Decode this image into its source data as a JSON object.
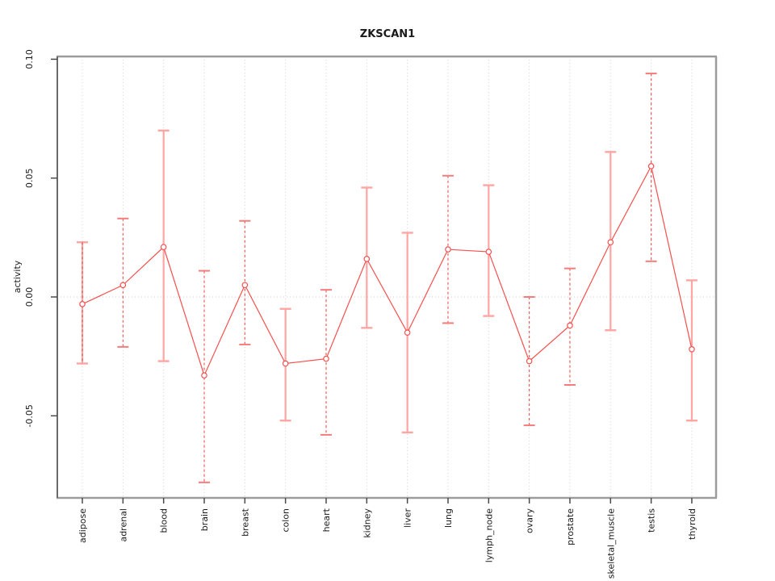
{
  "chart_data": {
    "type": "line",
    "title": "ZKSCAN1",
    "xlabel": "",
    "ylabel": "activity",
    "ylim": [
      -0.099,
      0.102
    ],
    "yticks": [
      0.1,
      0.05,
      0.0,
      -0.05
    ],
    "ytick_labels": [
      "0.10",
      "0.05",
      "0.00",
      "-0.05"
    ],
    "grid": "vertical dotted gridline per category, dotted horizontal line at y=0",
    "legend": "none",
    "point_marker": "open-circle",
    "categories": [
      "adipose",
      "adrenal",
      "blood",
      "brain",
      "breast",
      "colon",
      "heart",
      "kidney",
      "liver",
      "lung",
      "lymph_node",
      "ovary",
      "prostate",
      "skeletal_muscle",
      "testis",
      "thyroid"
    ],
    "series": [
      {
        "name": "activity",
        "values": [
          -0.003,
          0.005,
          0.021,
          -0.033,
          0.005,
          -0.028,
          -0.026,
          0.016,
          -0.015,
          0.02,
          0.019,
          -0.027,
          -0.012,
          0.023,
          0.055,
          -0.022
        ],
        "err_high": [
          0.023,
          0.033,
          0.07,
          0.011,
          0.032,
          -0.005,
          0.003,
          0.046,
          0.027,
          0.051,
          0.047,
          0.0,
          0.012,
          0.061,
          0.094,
          0.007
        ],
        "err_low": [
          -0.028,
          -0.021,
          -0.027,
          -0.078,
          -0.02,
          -0.052,
          -0.058,
          -0.013,
          -0.057,
          -0.011,
          -0.008,
          -0.054,
          -0.037,
          -0.014,
          0.015,
          -0.052
        ],
        "bar_styles": [
          "solid_dashed",
          "dashed",
          "solid",
          "dashed",
          "dashed",
          "solid",
          "dashed",
          "solid",
          "solid",
          "dashed",
          "solid",
          "dashed",
          "dashed",
          "solid",
          "dashed",
          "solid"
        ]
      }
    ],
    "colors": {
      "line": "#f4504e",
      "point_stroke": "#f4504e",
      "point_fill": "#ffffff",
      "solid_bar": "#ffa5a3",
      "dashed_bar": "#ee4e4c",
      "dashed_bar_cap": "#f57c7a",
      "grid": "#d4d4d4",
      "zero_line": "#c8c8c8",
      "frame": "#9c9c9c",
      "left_axis": "#6a6a6a",
      "tick": "#4a4a4a",
      "title": "#000000"
    }
  }
}
